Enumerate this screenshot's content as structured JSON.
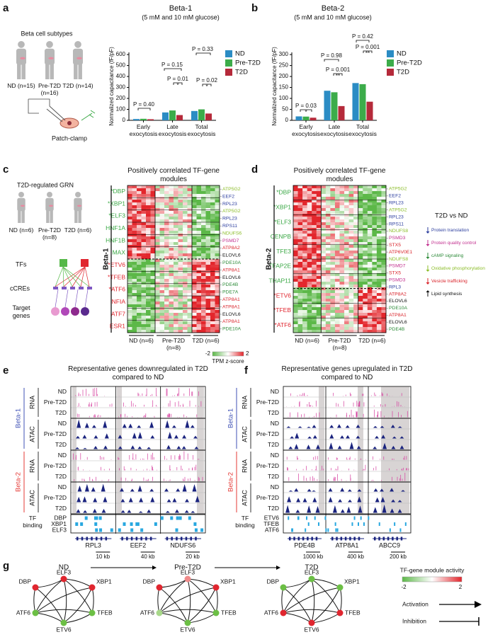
{
  "chart_data": [
    {
      "type": "bar",
      "label": "a",
      "title": "Beta-1",
      "subtitle": "(5 mM and 10 mM glucose)",
      "y_label": "Normalized capacitance (fF/pF)",
      "categories": [
        "Early exocytosis",
        "Late exocytosis",
        "Total exocytosis"
      ],
      "series": [
        {
          "name": "ND",
          "color": "#2b8cc4",
          "values": [
            12,
            72,
            85
          ]
        },
        {
          "name": "Pre-T2D",
          "color": "#3cac4a",
          "values": [
            14,
            90,
            100
          ]
        },
        {
          "name": "T2D",
          "color": "#b52a3a",
          "values": [
            10,
            48,
            62
          ]
        }
      ],
      "ylim": [
        0,
        620
      ],
      "yticks": [
        0,
        100,
        200,
        300,
        400,
        500,
        600
      ],
      "annotations": [
        "P = 0.40",
        "P = 0.15",
        "P = 0.01",
        "*",
        "P = 0.33",
        "P = 0.02",
        "*"
      ]
    },
    {
      "type": "bar",
      "label": "b",
      "title": "Beta-2",
      "subtitle": "(5 mM and 10 mM glucose)",
      "y_label": "Normalized capacitance (fF/pF)",
      "categories": [
        "Early exocytosis",
        "Late exocytosis",
        "Total exocytosis"
      ],
      "series": [
        {
          "name": "ND",
          "color": "#2b8cc4",
          "values": [
            18,
            135,
            170
          ]
        },
        {
          "name": "Pre-T2D",
          "color": "#3cac4a",
          "values": [
            17,
            128,
            165
          ]
        },
        {
          "name": "T2D",
          "color": "#b52a3a",
          "values": [
            12,
            65,
            85
          ]
        }
      ],
      "ylim": [
        0,
        310
      ],
      "yticks": [
        0,
        50,
        100,
        150,
        200,
        250,
        300
      ],
      "annotations": [
        "P = 0.03",
        "*",
        "P = 0.98",
        "P = 0.001",
        "**",
        "P = 0.42",
        "P = 0.001",
        "**"
      ]
    }
  ],
  "illustration": {
    "title": "Beta cell subtypes",
    "groups": [
      "ND (n=15)",
      "Pre-T2D (n=16)",
      "T2D (n=14)"
    ],
    "method": "Patch-clamp"
  },
  "grn": {
    "label": "c",
    "title": "T2D-regulated GRN",
    "groups": [
      "ND (n=6)",
      "Pre-T2D (n=8)",
      "T2D (n=6)"
    ],
    "layers": [
      "TFs",
      "cCREs",
      "Target genes"
    ]
  },
  "heatmaps": [
    {
      "title": "Positively correlated TF-gene modules",
      "cell_type": "Beta-1",
      "modules": [
        {
          "color": "#3aa845",
          "tfs": [
            "*DBP",
            "*XBP1",
            "*ELF3",
            "HNF1A",
            "HNF1B",
            "MAX"
          ]
        },
        {
          "color": "#e0262f",
          "tfs": [
            "*ETV6",
            "*TFEB",
            "*ATF6",
            "NFIA",
            "ATF7",
            "ESR1"
          ]
        }
      ],
      "genes": [
        "ATP5G2",
        "EEF2",
        "RPL23",
        "ATP5G2",
        "RPL23",
        "RPS11",
        "NDUFS6",
        "PSMD7",
        "ATP8A2",
        "ELOVL6",
        "PDE10A",
        "ATP8A1",
        "ELOVL6",
        "PDE4B",
        "PDE7A",
        "ATP8A1",
        "ATP8A1",
        "ELOVL6",
        "ATP8A1",
        "PDE10A"
      ],
      "gene_colors": [
        "#8cbd2a",
        "#2c3e9e",
        "#2c3e9e",
        "#8cbd2a",
        "#2c3e9e",
        "#2c3e9e",
        "#8cbd2a",
        "#c2308f",
        "#d9232a",
        "#111111",
        "#2e8b3a",
        "#d9232a",
        "#111111",
        "#2e8b3a",
        "#2e8b3a",
        "#d9232a",
        "#d9232a",
        "#111111",
        "#d9232a",
        "#2e8b3a"
      ],
      "groups": [
        "ND (n=6)",
        "Pre-T2D (n=8)",
        "T2D (n=6)"
      ]
    },
    {
      "label": "d",
      "title": "Positively correlated TF-gene modules",
      "cell_type": "Beta-2",
      "modules": [
        {
          "color": "#3aa845",
          "tfs": [
            "*DBP",
            "*XBP1",
            "*ELF3",
            "CENPB",
            "TFE3",
            "TFAP2E",
            "THAP11"
          ]
        },
        {
          "color": "#e0262f",
          "tfs": [
            "*ETV6",
            "*TFEB",
            "*ATF6"
          ]
        }
      ],
      "genes": [
        "ATP5G2",
        "EEF2",
        "RPL23",
        "ATP5G2",
        "RPL23",
        "RPS11",
        "NDUFS8",
        "PSMD3",
        "STX5",
        "ATP6V0E1",
        "NDUFS8",
        "PSMD7",
        "STX5",
        "PSMD3",
        "RPL3",
        "ATP8A2",
        "ELOVL6",
        "PDE10A",
        "ATP8A1",
        "ELOVL6",
        "PDE4B"
      ],
      "gene_colors": [
        "#8cbd2a",
        "#2c3e9e",
        "#2c3e9e",
        "#8cbd2a",
        "#2c3e9e",
        "#2c3e9e",
        "#8cbd2a",
        "#c2308f",
        "#d9232a",
        "#d9232a",
        "#8cbd2a",
        "#c2308f",
        "#d9232a",
        "#c2308f",
        "#2c3e9e",
        "#d9232a",
        "#111111",
        "#2e8b3a",
        "#d9232a",
        "#111111",
        "#2e8b3a"
      ],
      "groups": [
        "ND (n=6)",
        "Pre-T2D (n=8)",
        "T2D (n=6)"
      ]
    }
  ],
  "colorbar": {
    "ticks": [
      -2,
      2
    ],
    "title": "TPM z-score",
    "colors": [
      "#5cb848",
      "#e3262c"
    ]
  },
  "pathways": {
    "title": "T2D vs ND",
    "items": [
      {
        "text": "Protein translation",
        "direction": "down",
        "color": "#2c3e9e"
      },
      {
        "text": "Protein quality control",
        "direction": "down",
        "color": "#c2308f"
      },
      {
        "text": "cAMP signaling",
        "direction": "down",
        "color": "#2e8b3a"
      },
      {
        "text": "Oxidative phosphorylation",
        "direction": "down",
        "color": "#8cbd2a"
      },
      {
        "text": "Vesicle trafficking",
        "direction": "down",
        "color": "#d9232a"
      },
      {
        "text": "Lipid synthesis",
        "direction": "up",
        "color": "#111111"
      }
    ]
  },
  "tracks": [
    {
      "label": "e",
      "title": "Representative genes downregulated in T2D compared to ND",
      "cell_types": [
        "Beta-1",
        "Beta-2"
      ],
      "cell_type_colors": [
        "#3f51b5",
        "#e53935"
      ],
      "assays": [
        "RNA",
        "ATAC"
      ],
      "conditions": [
        "ND",
        "Pre-T2D",
        "T2D"
      ],
      "tf_label": "TF binding",
      "tfs": [
        "DBP",
        "XBP1",
        "ELF3"
      ],
      "genes": [
        "RPL3",
        "EEF2",
        "NDUFS6"
      ],
      "scales": [
        "10 kb",
        "40 kb",
        "20 kb"
      ]
    },
    {
      "label": "f",
      "title": "Representative genes upregulated in T2D compared to ND",
      "cell_types": [
        "Beta-1",
        "Beta-2"
      ],
      "cell_type_colors": [
        "#3f51b5",
        "#e53935"
      ],
      "assays": [
        "RNA",
        "ATAC"
      ],
      "conditions": [
        "ND",
        "Pre-T2D",
        "T2D"
      ],
      "tf_label": "TF binding",
      "tfs": [
        "ETV6",
        "TFEB",
        "ATF6"
      ],
      "genes": [
        "PDE4B",
        "ATP8A1",
        "ABCC9"
      ],
      "scales": [
        "1000 kb",
        "400 kb",
        "200 kb"
      ]
    }
  ],
  "network": {
    "label": "g",
    "states": [
      {
        "name": "ND",
        "nodes": [
          {
            "name": "ELF3",
            "color": "#e0262f"
          },
          {
            "name": "XBP1",
            "color": "#e0262f"
          },
          {
            "name": "DBP",
            "color": "#e0262f"
          },
          {
            "name": "TFEB",
            "color": "#6cbf45"
          },
          {
            "name": "ATF6",
            "color": "#6cbf45"
          },
          {
            "name": "ETV6",
            "color": "#6cbf45"
          }
        ]
      },
      {
        "name": "Pre-T2D",
        "nodes": [
          {
            "name": "ELF3",
            "color": "#f08a8a"
          },
          {
            "name": "XBP1",
            "color": "#e0262f"
          },
          {
            "name": "DBP",
            "color": "#e0262f"
          },
          {
            "name": "TFEB",
            "color": "#6cbf45"
          },
          {
            "name": "ATF6",
            "color": "#a8d88a"
          },
          {
            "name": "ETV6",
            "color": "#6cbf45"
          }
        ]
      },
      {
        "name": "T2D",
        "nodes": [
          {
            "name": "ELF3",
            "color": "#6cbf45"
          },
          {
            "name": "XBP1",
            "color": "#6cbf45"
          },
          {
            "name": "DBP",
            "color": "#6cbf45"
          },
          {
            "name": "TFEB",
            "color": "#e0262f"
          },
          {
            "name": "ATF6",
            "color": "#e0262f"
          },
          {
            "name": "ETV6",
            "color": "#e0262f"
          }
        ]
      }
    ],
    "legend_title": "TF-gene module activity",
    "scale_ticks": [
      -2,
      2
    ],
    "edge_types": [
      "Activation",
      "Inhibition"
    ]
  }
}
